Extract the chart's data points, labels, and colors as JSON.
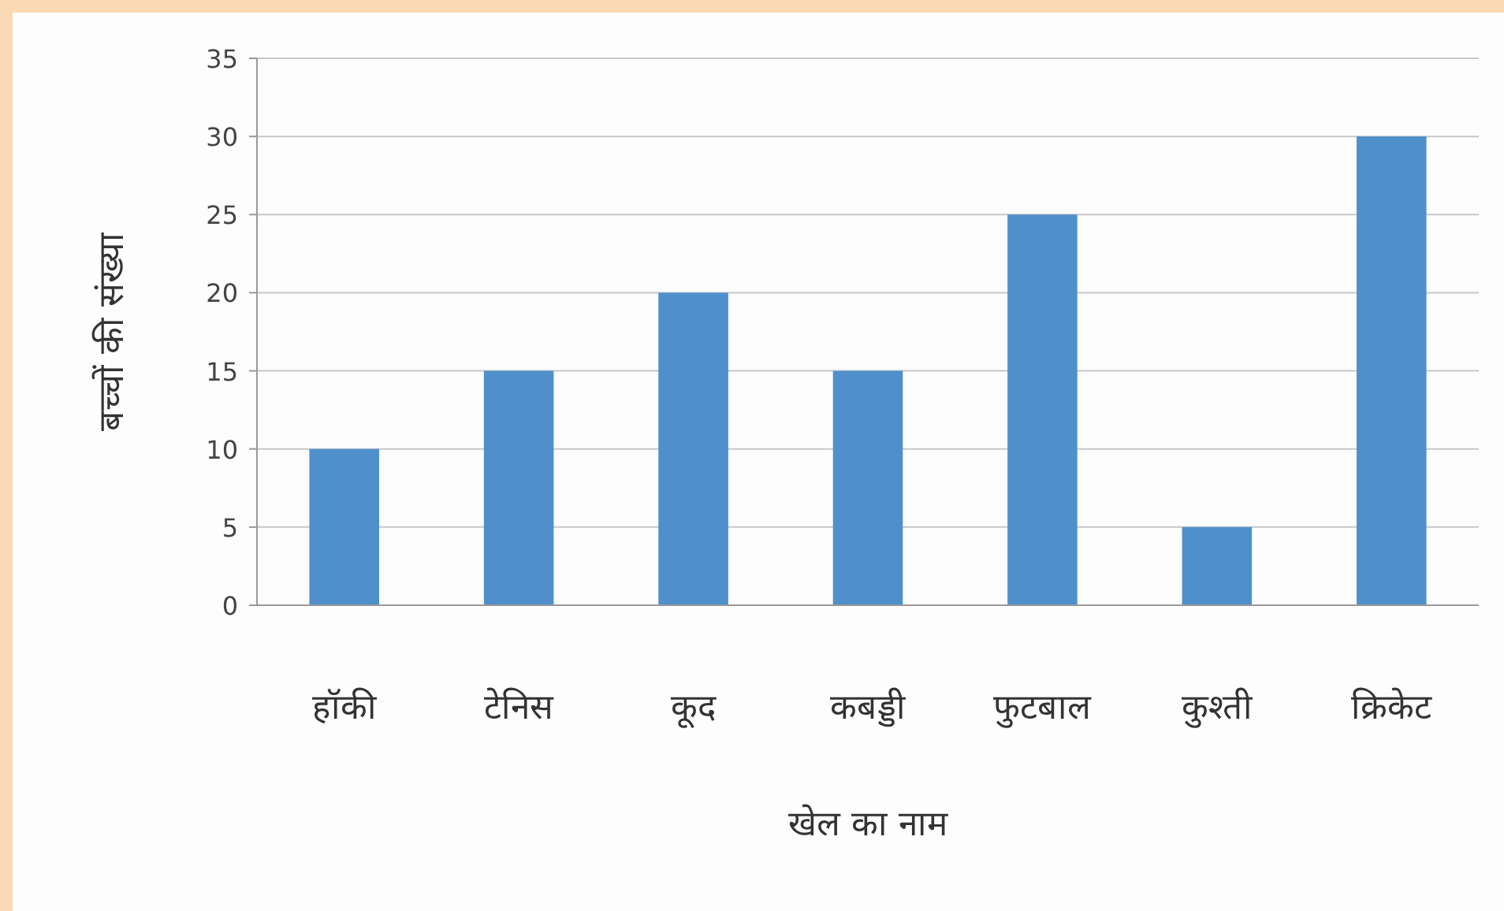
{
  "chart_data": {
    "type": "bar",
    "xlabel": "खेल का नाम",
    "ylabel": "बच्चों की संख्या",
    "categories": [
      "हॉकी",
      "टेनिस",
      "कूद",
      "कबड्डी",
      "फुटबाल",
      "कुश्ती",
      "क्रिकेट"
    ],
    "values": [
      10,
      15,
      20,
      15,
      25,
      5,
      30
    ],
    "color": "#4f90cc",
    "ylim": [
      0,
      35
    ],
    "yticks": [
      0,
      5,
      10,
      15,
      20,
      25,
      30,
      35
    ],
    "grid": "y"
  }
}
